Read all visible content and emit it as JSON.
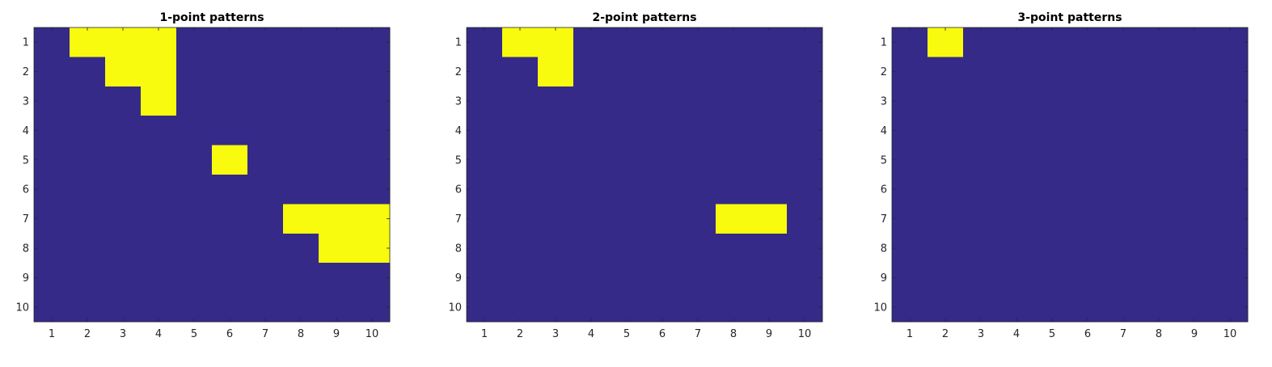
{
  "chart_data": [
    {
      "type": "heatmap",
      "title": "1-point patterns",
      "xlabel": "",
      "ylabel": "",
      "x_ticks": [
        "1",
        "2",
        "3",
        "4",
        "5",
        "6",
        "7",
        "8",
        "9",
        "10"
      ],
      "y_ticks": [
        "1",
        "2",
        "3",
        "4",
        "5",
        "6",
        "7",
        "8",
        "9",
        "10"
      ],
      "xlim": [
        0.5,
        10.5
      ],
      "ylim": [
        0.5,
        10.5
      ],
      "y_direction": "top-to-bottom",
      "grid": false,
      "matrix": [
        [
          0,
          1,
          1,
          1,
          0,
          0,
          0,
          0,
          0,
          0
        ],
        [
          0,
          0,
          1,
          1,
          0,
          0,
          0,
          0,
          0,
          0
        ],
        [
          0,
          0,
          0,
          1,
          0,
          0,
          0,
          0,
          0,
          0
        ],
        [
          0,
          0,
          0,
          0,
          0,
          0,
          0,
          0,
          0,
          0
        ],
        [
          0,
          0,
          0,
          0,
          0,
          1,
          0,
          0,
          0,
          0
        ],
        [
          0,
          0,
          0,
          0,
          0,
          0,
          0,
          0,
          0,
          0
        ],
        [
          0,
          0,
          0,
          0,
          0,
          0,
          0,
          1,
          1,
          1
        ],
        [
          0,
          0,
          0,
          0,
          0,
          0,
          0,
          0,
          1,
          1
        ],
        [
          0,
          0,
          0,
          0,
          0,
          0,
          0,
          0,
          0,
          0
        ],
        [
          0,
          0,
          0,
          0,
          0,
          0,
          0,
          0,
          0,
          0
        ]
      ]
    },
    {
      "type": "heatmap",
      "title": "2-point patterns",
      "xlabel": "",
      "ylabel": "",
      "x_ticks": [
        "1",
        "2",
        "3",
        "4",
        "5",
        "6",
        "7",
        "8",
        "9",
        "10"
      ],
      "y_ticks": [
        "1",
        "2",
        "3",
        "4",
        "5",
        "6",
        "7",
        "8",
        "9",
        "10"
      ],
      "xlim": [
        0.5,
        10.5
      ],
      "ylim": [
        0.5,
        10.5
      ],
      "y_direction": "top-to-bottom",
      "grid": false,
      "matrix": [
        [
          0,
          1,
          1,
          0,
          0,
          0,
          0,
          0,
          0,
          0
        ],
        [
          0,
          0,
          1,
          0,
          0,
          0,
          0,
          0,
          0,
          0
        ],
        [
          0,
          0,
          0,
          0,
          0,
          0,
          0,
          0,
          0,
          0
        ],
        [
          0,
          0,
          0,
          0,
          0,
          0,
          0,
          0,
          0,
          0
        ],
        [
          0,
          0,
          0,
          0,
          0,
          0,
          0,
          0,
          0,
          0
        ],
        [
          0,
          0,
          0,
          0,
          0,
          0,
          0,
          0,
          0,
          0
        ],
        [
          0,
          0,
          0,
          0,
          0,
          0,
          0,
          1,
          1,
          0
        ],
        [
          0,
          0,
          0,
          0,
          0,
          0,
          0,
          0,
          0,
          0
        ],
        [
          0,
          0,
          0,
          0,
          0,
          0,
          0,
          0,
          0,
          0
        ],
        [
          0,
          0,
          0,
          0,
          0,
          0,
          0,
          0,
          0,
          0
        ]
      ]
    },
    {
      "type": "heatmap",
      "title": "3-point patterns",
      "xlabel": "",
      "ylabel": "",
      "x_ticks": [
        "1",
        "2",
        "3",
        "4",
        "5",
        "6",
        "7",
        "8",
        "9",
        "10"
      ],
      "y_ticks": [
        "1",
        "2",
        "3",
        "4",
        "5",
        "6",
        "7",
        "8",
        "9",
        "10"
      ],
      "xlim": [
        0.5,
        10.5
      ],
      "ylim": [
        0.5,
        10.5
      ],
      "y_direction": "top-to-bottom",
      "grid": false,
      "matrix": [
        [
          0,
          1,
          0,
          0,
          0,
          0,
          0,
          0,
          0,
          0
        ],
        [
          0,
          0,
          0,
          0,
          0,
          0,
          0,
          0,
          0,
          0
        ],
        [
          0,
          0,
          0,
          0,
          0,
          0,
          0,
          0,
          0,
          0
        ],
        [
          0,
          0,
          0,
          0,
          0,
          0,
          0,
          0,
          0,
          0
        ],
        [
          0,
          0,
          0,
          0,
          0,
          0,
          0,
          0,
          0,
          0
        ],
        [
          0,
          0,
          0,
          0,
          0,
          0,
          0,
          0,
          0,
          0
        ],
        [
          0,
          0,
          0,
          0,
          0,
          0,
          0,
          0,
          0,
          0
        ],
        [
          0,
          0,
          0,
          0,
          0,
          0,
          0,
          0,
          0,
          0
        ],
        [
          0,
          0,
          0,
          0,
          0,
          0,
          0,
          0,
          0,
          0
        ],
        [
          0,
          0,
          0,
          0,
          0,
          0,
          0,
          0,
          0,
          0
        ]
      ]
    }
  ],
  "colors": {
    "background_cell": "#352a87",
    "highlight_cell": "#f9fb0e",
    "axis_line": "#262626",
    "tick_text": "#262626"
  }
}
